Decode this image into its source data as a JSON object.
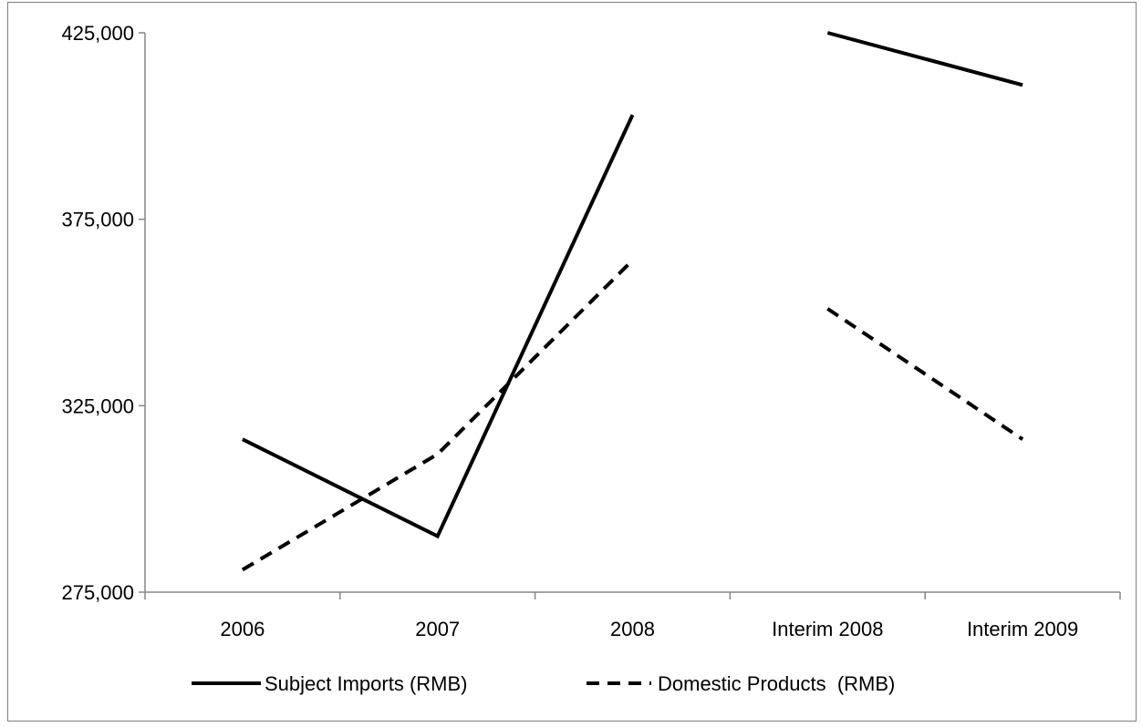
{
  "chart_data": {
    "type": "line",
    "title": "",
    "xlabel": "",
    "ylabel": "",
    "categories": [
      "2006",
      "2007",
      "2008",
      "Interim 2008",
      "Interim 2009"
    ],
    "ylim": [
      275000,
      425000
    ],
    "yticks": [
      275000,
      325000,
      375000,
      425000
    ],
    "ytick_labels": [
      "275,000",
      "325,000",
      "375,000",
      "425,000"
    ],
    "legend_position": "bottom",
    "grid": false,
    "series": [
      {
        "name": "Subject Imports (RMB)",
        "style": "solid",
        "color": "#000000",
        "segments": [
          [
            0,
            1,
            2
          ],
          [
            3,
            4
          ]
        ],
        "values": [
          316000,
          290000,
          403000,
          425000,
          411000
        ]
      },
      {
        "name": "Domestic Products  (RMB)",
        "style": "dashed",
        "color": "#000000",
        "segments": [
          [
            0,
            1,
            2
          ],
          [
            3,
            4
          ]
        ],
        "values": [
          281000,
          312000,
          364000,
          351000,
          316000
        ]
      }
    ]
  }
}
